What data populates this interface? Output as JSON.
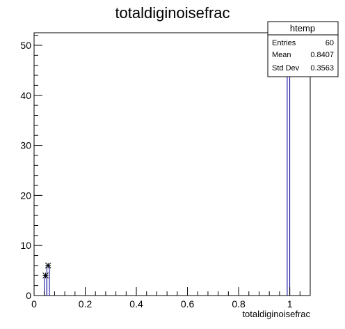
{
  "chart_data": {
    "type": "bar",
    "title": "totaldiginoisefrac",
    "xlabel": "totaldiginoisefrac",
    "ylabel": "",
    "xlim": [
      0,
      1.08
    ],
    "ylim": [
      0,
      52.5
    ],
    "x_ticks": [
      0,
      0.2,
      0.4,
      0.6,
      0.8,
      1
    ],
    "x_tick_labels": [
      "0",
      "0.2",
      "0.4",
      "0.6",
      "0.8",
      "1"
    ],
    "y_ticks": [
      0,
      10,
      20,
      30,
      40,
      50
    ],
    "y_tick_labels": [
      "0",
      "10",
      "20",
      "30",
      "40",
      "50"
    ],
    "bin_width": 0.01,
    "series": [
      {
        "bins": [
          {
            "x": 0.04,
            "value": 4
          },
          {
            "x": 0.05,
            "value": 6
          },
          {
            "x": 0.99,
            "value": 50
          }
        ]
      }
    ],
    "stats_box": {
      "title": "htemp",
      "rows": [
        {
          "label": "Entries",
          "value": "60"
        },
        {
          "label": "Mean",
          "value": "0.8407"
        },
        {
          "label": "Std Dev",
          "value": "0.3563"
        }
      ]
    },
    "colors": {
      "histogram": "#000099",
      "axis": "#000000"
    }
  }
}
